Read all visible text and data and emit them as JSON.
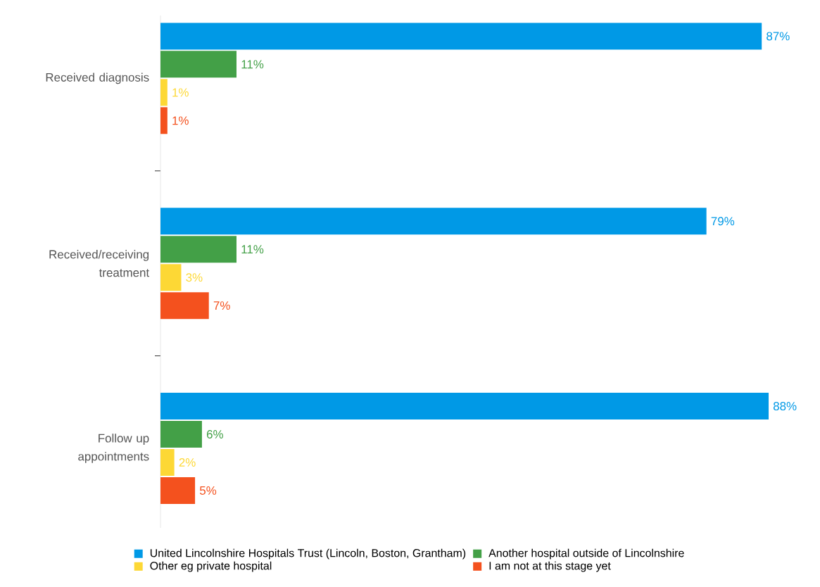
{
  "chart_data": {
    "type": "bar",
    "orientation": "horizontal",
    "categories": [
      "Received diagnosis",
      "Received/receiving treatment",
      "Follow up appointments"
    ],
    "series": [
      {
        "name": "United Lincolnshire Hospitals Trust (Lincoln, Boston, Grantham)",
        "color": "#0099e6",
        "values": [
          87,
          79,
          88
        ],
        "value_labels": [
          "87%",
          "79%",
          "88%"
        ]
      },
      {
        "name": "Another hospital outside of Lincolnshire",
        "color": "#43a047",
        "values": [
          11,
          11,
          6
        ],
        "value_labels": [
          "11%",
          "11%",
          "6%"
        ]
      },
      {
        "name": "Other eg private hospital",
        "color": "#fdd835",
        "values": [
          1,
          3,
          2
        ],
        "value_labels": [
          "1%",
          "3%",
          "2%"
        ]
      },
      {
        "name": "I am not at this stage yet",
        "color": "#f4511e",
        "values": [
          1,
          7,
          5
        ],
        "value_labels": [
          "1%",
          "7%",
          "5%"
        ]
      }
    ],
    "legend": "bottom"
  }
}
